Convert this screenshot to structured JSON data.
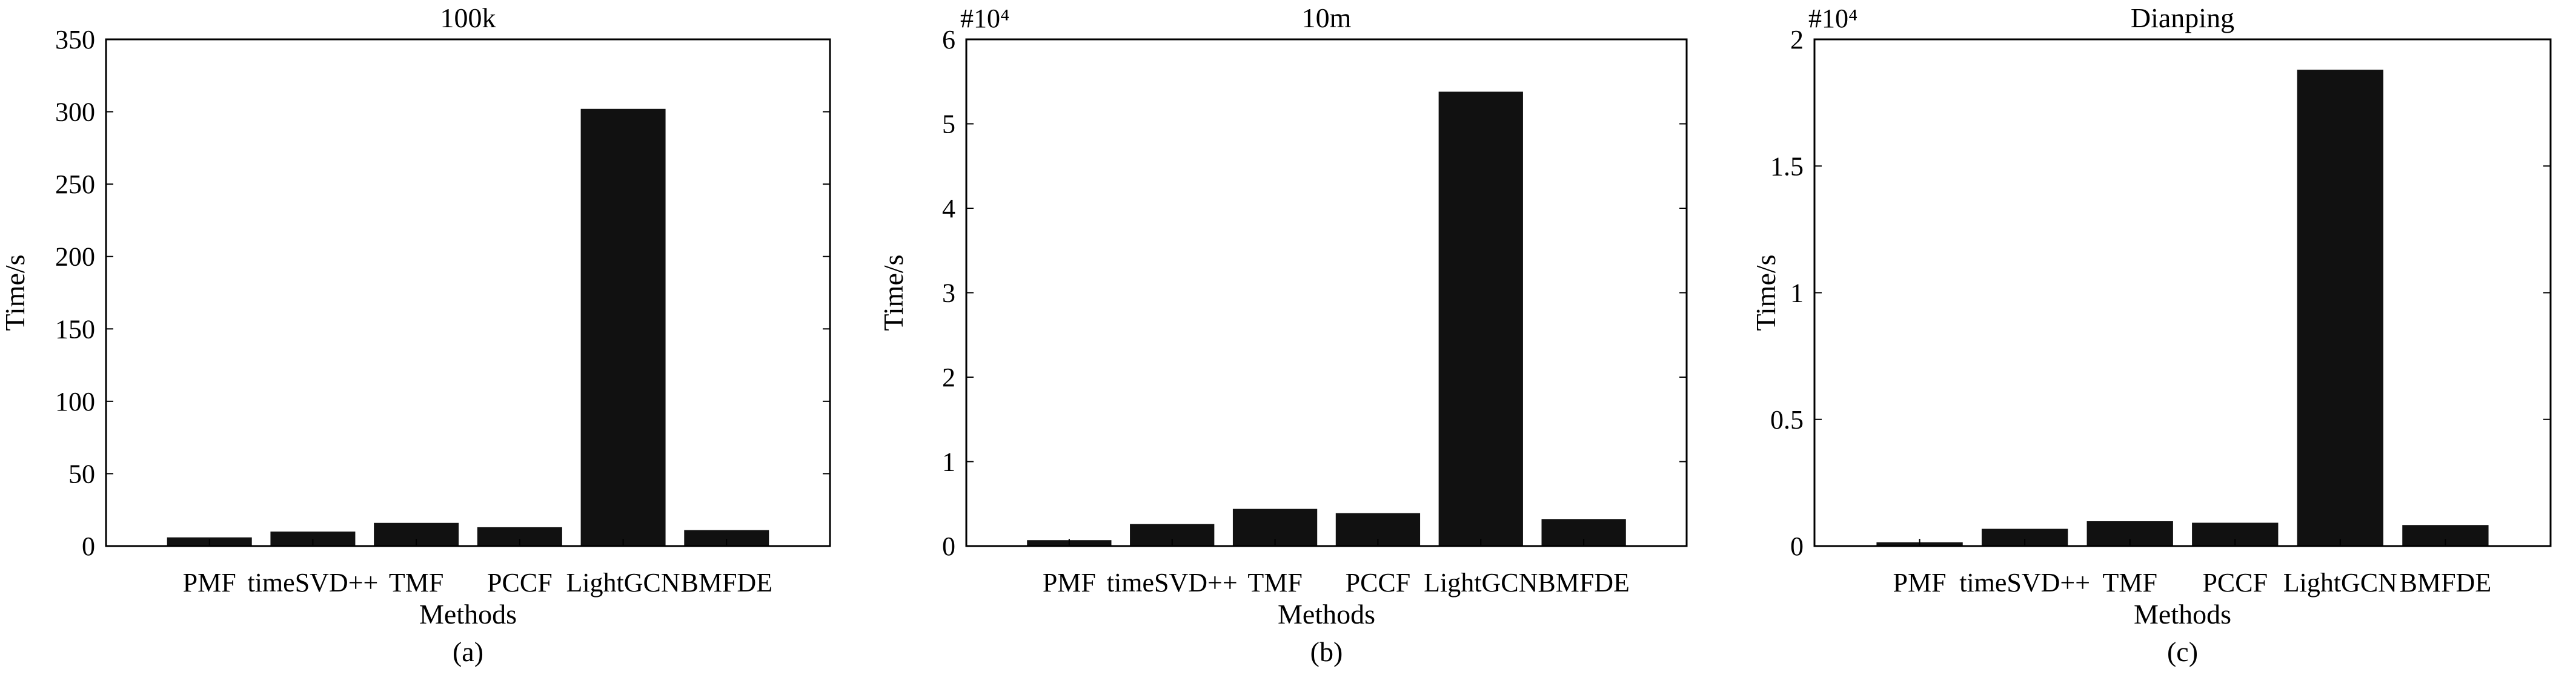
{
  "chart_data": [
    {
      "type": "bar",
      "title": "100k",
      "multiplier": "",
      "caption": "(a)",
      "xlabel": "Methods",
      "ylabel": "Time/s",
      "categories": [
        "PMF",
        "timeSVD++",
        "TMF",
        "PCCF",
        "LightGCN",
        "BMFDE"
      ],
      "values": [
        6,
        10,
        16,
        13,
        302,
        11
      ],
      "ylim": [
        0,
        350
      ],
      "yticks": [
        0,
        50,
        100,
        150,
        200,
        250,
        300,
        350
      ],
      "bar_color": "#111111",
      "grid": false
    },
    {
      "type": "bar",
      "title": "10m",
      "multiplier": "#10⁴",
      "caption": "(b)",
      "xlabel": "Methods",
      "ylabel": "Time/s",
      "categories": [
        "PMF",
        "timeSVD++",
        "TMF",
        "PCCF",
        "LightGCN",
        "BMFDE"
      ],
      "values": [
        0.07,
        0.26,
        0.44,
        0.39,
        5.38,
        0.32
      ],
      "ylim": [
        0,
        6
      ],
      "yticks": [
        0,
        1,
        2,
        3,
        4,
        5,
        6
      ],
      "bar_color": "#111111",
      "grid": false
    },
    {
      "type": "bar",
      "title": "Dianping",
      "multiplier": "#10⁴",
      "caption": "(c)",
      "xlabel": "Methods",
      "ylabel": "Time/s",
      "categories": [
        "PMF",
        "timeSVD++",
        "TMF",
        "PCCF",
        "LightGCN",
        "BMFDE"
      ],
      "values": [
        0.015,
        0.068,
        0.098,
        0.092,
        1.88,
        0.083
      ],
      "ylim": [
        0,
        2
      ],
      "yticks": [
        0,
        0.5,
        1,
        1.5,
        2
      ],
      "bar_color": "#111111",
      "grid": false
    }
  ]
}
